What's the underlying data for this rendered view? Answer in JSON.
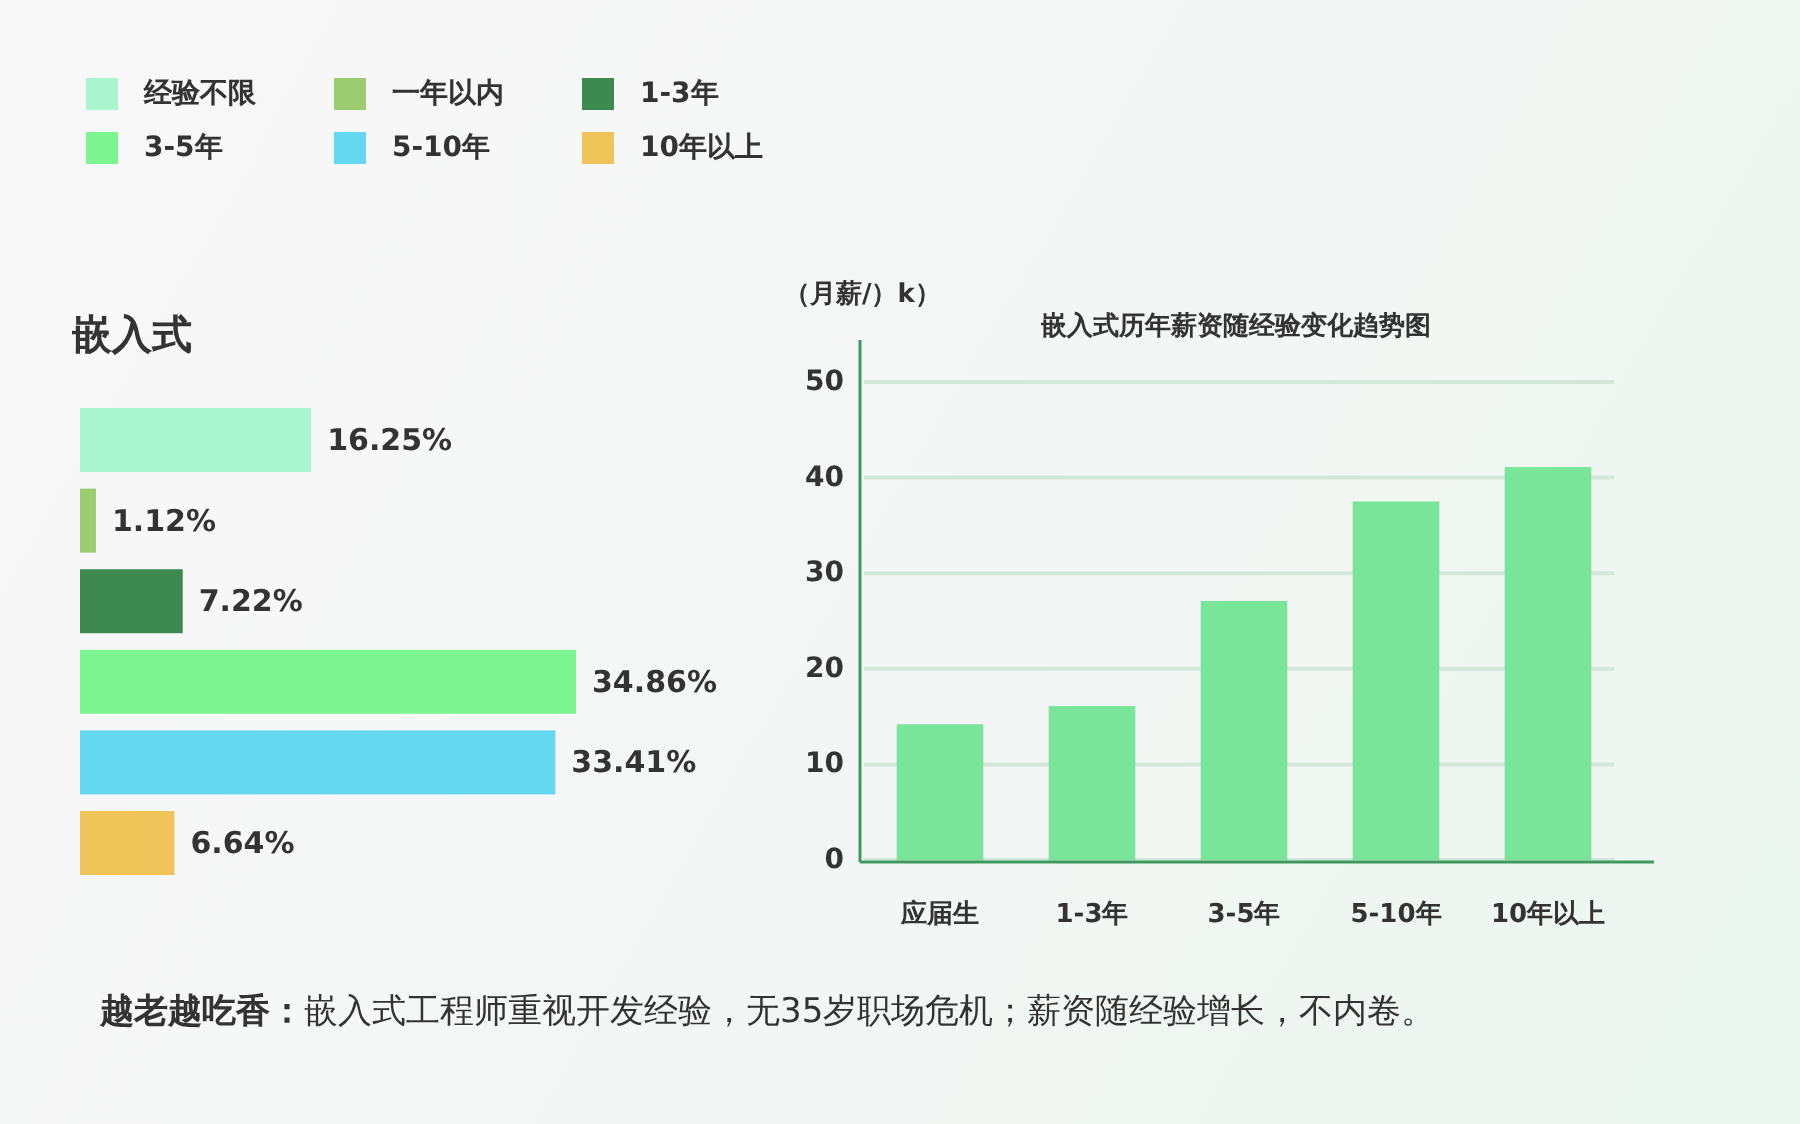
{
  "chart_data": [
    {
      "type": "bar",
      "orientation": "horizontal",
      "title": "嵌入式",
      "categories": [
        null
      ],
      "series": [
        {
          "name": "经验不限",
          "color": "#a9f5cf",
          "values": [
            16.25
          ],
          "value_labels": [
            "16.25%"
          ]
        },
        {
          "name": "一年以内",
          "color": "#9ccc70",
          "values": [
            1.12
          ],
          "value_labels": [
            "1.12%"
          ]
        },
        {
          "name": "1-3年",
          "color": "#3e8950",
          "values": [
            7.22
          ],
          "value_labels": [
            "7.22%"
          ]
        },
        {
          "name": "3-5年",
          "color": "#7df590",
          "values": [
            34.86
          ],
          "value_labels": [
            "34.86%"
          ]
        },
        {
          "name": "5-10年",
          "color": "#64d8f0",
          "values": [
            33.41
          ],
          "value_labels": [
            "33.41%"
          ]
        },
        {
          "name": "10年以上",
          "color": "#efc55a",
          "values": [
            6.64
          ],
          "value_labels": [
            "6.64%"
          ]
        }
      ],
      "legend": "top right"
    },
    {
      "type": "bar",
      "title": "嵌入式历年薪资随经验变化趋势图",
      "ylabel": "（月薪/）k）",
      "categories": [
        "应届生",
        "1-3年",
        "3-5年",
        "5-10年",
        "10年以上"
      ],
      "values": [
        14.2,
        16.1,
        27.1,
        37.5,
        41.1
      ],
      "color": "#78e598",
      "ylim": [
        0,
        50
      ],
      "yticks": [
        0,
        10,
        20,
        30,
        40,
        50
      ],
      "grid": "y"
    },
    {
      "type": "other",
      "annotations": [
        "**越老越吃香：**嵌入式工程师重视开发经验，无35岁职场危机；薪资随经验增长，不内卷。"
      ]
    }
  ]
}
